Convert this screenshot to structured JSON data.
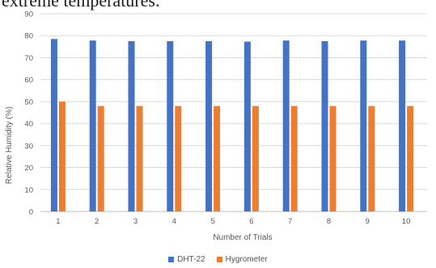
{
  "page_text": {
    "partial_line": "extreme temperatures."
  },
  "chart_data": {
    "type": "bar",
    "title": "",
    "xlabel": "Number of Trials",
    "ylabel": "Relative Humidity (%)",
    "ylim": [
      0,
      90
    ],
    "ytick_step": 10,
    "grid": true,
    "legend_position": "bottom",
    "categories": [
      "1",
      "2",
      "3",
      "4",
      "5",
      "6",
      "7",
      "8",
      "9",
      "10"
    ],
    "series": [
      {
        "name": "DHT-22",
        "color": "#4472c4",
        "values": [
          78.5,
          77.8,
          77.5,
          77.5,
          77.5,
          77.3,
          77.8,
          77.5,
          77.8,
          77.8
        ]
      },
      {
        "name": "Hygrometer",
        "color": "#ed7d31",
        "values": [
          50,
          48,
          48,
          48,
          48,
          48,
          48,
          48,
          48,
          48
        ]
      }
    ]
  }
}
